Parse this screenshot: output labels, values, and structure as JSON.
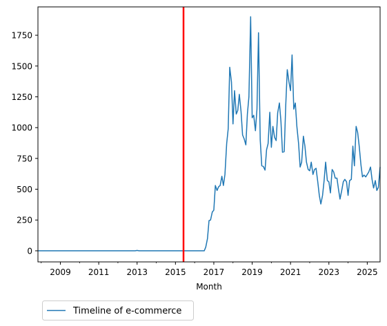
{
  "chart_data": {
    "type": "line",
    "xlabel": "Month",
    "ylabel": "",
    "xlim": [
      2007.83,
      2025.67
    ],
    "ylim": [
      -90,
      1980
    ],
    "xticks": [
      {
        "value": 2009,
        "label": "2009"
      },
      {
        "value": 2011,
        "label": "2011"
      },
      {
        "value": 2013,
        "label": "2013"
      },
      {
        "value": 2015,
        "label": "2015"
      },
      {
        "value": 2017,
        "label": "2017"
      },
      {
        "value": 2019,
        "label": "2019"
      },
      {
        "value": 2021,
        "label": "2021"
      },
      {
        "value": 2023,
        "label": "2023"
      },
      {
        "value": 2025,
        "label": "2025"
      }
    ],
    "yticks": [
      {
        "value": 0,
        "label": "0"
      },
      {
        "value": 250,
        "label": "250"
      },
      {
        "value": 500,
        "label": "500"
      },
      {
        "value": 750,
        "label": "750"
      },
      {
        "value": 1000,
        "label": "1000"
      },
      {
        "value": 1250,
        "label": "1250"
      },
      {
        "value": 1500,
        "label": "1500"
      },
      {
        "value": 1750,
        "label": "1750"
      }
    ],
    "vline": {
      "x": 2015.42,
      "color": "#ff0000"
    },
    "grid": false,
    "legend_position": "below",
    "series": [
      {
        "name": "Timeline of e-commerce",
        "color": "#1f77b4",
        "points": [
          [
            2007.83,
            0
          ],
          [
            2012.9,
            0
          ],
          [
            2013.0,
            3
          ],
          [
            2013.1,
            0
          ],
          [
            2016.5,
            0
          ],
          [
            2016.58,
            30
          ],
          [
            2016.67,
            100
          ],
          [
            2016.75,
            245
          ],
          [
            2016.83,
            250
          ],
          [
            2016.92,
            315
          ],
          [
            2017.0,
            330
          ],
          [
            2017.08,
            530
          ],
          [
            2017.17,
            490
          ],
          [
            2017.25,
            520
          ],
          [
            2017.33,
            530
          ],
          [
            2017.42,
            605
          ],
          [
            2017.5,
            530
          ],
          [
            2017.58,
            620
          ],
          [
            2017.67,
            870
          ],
          [
            2017.75,
            990
          ],
          [
            2017.83,
            1490
          ],
          [
            2017.92,
            1370
          ],
          [
            2018.0,
            1030
          ],
          [
            2018.08,
            1300
          ],
          [
            2018.17,
            1110
          ],
          [
            2018.25,
            1140
          ],
          [
            2018.33,
            1270
          ],
          [
            2018.42,
            1130
          ],
          [
            2018.5,
            940
          ],
          [
            2018.58,
            910
          ],
          [
            2018.67,
            860
          ],
          [
            2018.75,
            1110
          ],
          [
            2018.83,
            1250
          ],
          [
            2018.92,
            1900
          ],
          [
            2019.0,
            1080
          ],
          [
            2019.08,
            1100
          ],
          [
            2019.17,
            975
          ],
          [
            2019.25,
            1150
          ],
          [
            2019.33,
            1770
          ],
          [
            2019.42,
            900
          ],
          [
            2019.5,
            690
          ],
          [
            2019.58,
            685
          ],
          [
            2019.67,
            655
          ],
          [
            2019.75,
            820
          ],
          [
            2019.83,
            870
          ],
          [
            2019.92,
            1125
          ],
          [
            2020.0,
            840
          ],
          [
            2020.08,
            1010
          ],
          [
            2020.17,
            920
          ],
          [
            2020.25,
            895
          ],
          [
            2020.33,
            1120
          ],
          [
            2020.42,
            1200
          ],
          [
            2020.5,
            1050
          ],
          [
            2020.58,
            800
          ],
          [
            2020.67,
            805
          ],
          [
            2020.75,
            1180
          ],
          [
            2020.83,
            1470
          ],
          [
            2020.92,
            1370
          ],
          [
            2021.0,
            1300
          ],
          [
            2021.08,
            1590
          ],
          [
            2021.17,
            1150
          ],
          [
            2021.25,
            1200
          ],
          [
            2021.33,
            1010
          ],
          [
            2021.42,
            870
          ],
          [
            2021.5,
            680
          ],
          [
            2021.58,
            720
          ],
          [
            2021.67,
            930
          ],
          [
            2021.75,
            850
          ],
          [
            2021.83,
            720
          ],
          [
            2021.92,
            660
          ],
          [
            2022.0,
            650
          ],
          [
            2022.08,
            720
          ],
          [
            2022.17,
            620
          ],
          [
            2022.25,
            660
          ],
          [
            2022.33,
            670
          ],
          [
            2022.42,
            560
          ],
          [
            2022.5,
            450
          ],
          [
            2022.58,
            380
          ],
          [
            2022.67,
            450
          ],
          [
            2022.75,
            570
          ],
          [
            2022.83,
            720
          ],
          [
            2022.92,
            570
          ],
          [
            2023.0,
            560
          ],
          [
            2023.08,
            470
          ],
          [
            2023.17,
            660
          ],
          [
            2023.25,
            640
          ],
          [
            2023.33,
            590
          ],
          [
            2023.42,
            590
          ],
          [
            2023.5,
            500
          ],
          [
            2023.58,
            420
          ],
          [
            2023.67,
            490
          ],
          [
            2023.75,
            560
          ],
          [
            2023.83,
            580
          ],
          [
            2023.92,
            560
          ],
          [
            2024.0,
            450
          ],
          [
            2024.08,
            570
          ],
          [
            2024.17,
            580
          ],
          [
            2024.25,
            850
          ],
          [
            2024.33,
            690
          ],
          [
            2024.42,
            1010
          ],
          [
            2024.5,
            960
          ],
          [
            2024.58,
            850
          ],
          [
            2024.67,
            700
          ],
          [
            2024.75,
            600
          ],
          [
            2024.83,
            615
          ],
          [
            2024.92,
            600
          ],
          [
            2025.0,
            620
          ],
          [
            2025.08,
            640
          ],
          [
            2025.17,
            680
          ],
          [
            2025.25,
            580
          ],
          [
            2025.33,
            510
          ],
          [
            2025.42,
            570
          ],
          [
            2025.5,
            490
          ],
          [
            2025.58,
            515
          ],
          [
            2025.67,
            680
          ]
        ]
      }
    ]
  }
}
